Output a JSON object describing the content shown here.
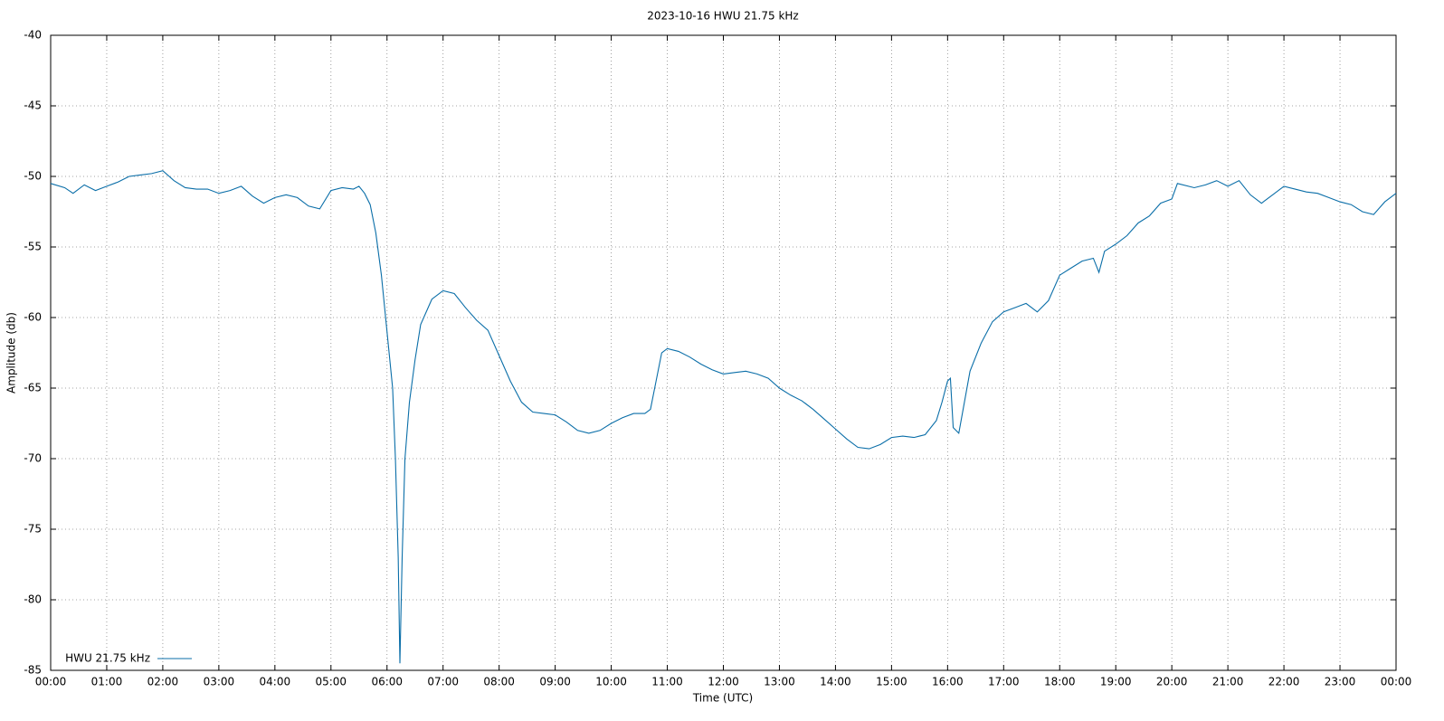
{
  "chart_data": {
    "type": "line",
    "title": "2023-10-16 HWU 21.75 kHz",
    "xlabel": "Time (UTC)",
    "ylabel": "Amplitude (db)",
    "grid": true,
    "legend": "bottom-left",
    "xlim": [
      0,
      24
    ],
    "ylim": [
      -85,
      -40
    ],
    "yticks": [
      -85,
      -80,
      -75,
      -70,
      -65,
      -60,
      -55,
      -50,
      -45,
      -40
    ],
    "xticks": [
      {
        "value": 0,
        "label": "00:00"
      },
      {
        "value": 1,
        "label": "01:00"
      },
      {
        "value": 2,
        "label": "02:00"
      },
      {
        "value": 3,
        "label": "03:00"
      },
      {
        "value": 4,
        "label": "04:00"
      },
      {
        "value": 5,
        "label": "05:00"
      },
      {
        "value": 6,
        "label": "06:00"
      },
      {
        "value": 7,
        "label": "07:00"
      },
      {
        "value": 8,
        "label": "08:00"
      },
      {
        "value": 9,
        "label": "09:00"
      },
      {
        "value": 10,
        "label": "10:00"
      },
      {
        "value": 11,
        "label": "11:00"
      },
      {
        "value": 12,
        "label": "12:00"
      },
      {
        "value": 13,
        "label": "13:00"
      },
      {
        "value": 14,
        "label": "14:00"
      },
      {
        "value": 15,
        "label": "15:00"
      },
      {
        "value": 16,
        "label": "16:00"
      },
      {
        "value": 17,
        "label": "17:00"
      },
      {
        "value": 18,
        "label": "18:00"
      },
      {
        "value": 19,
        "label": "19:00"
      },
      {
        "value": 20,
        "label": "20:00"
      },
      {
        "value": 21,
        "label": "21:00"
      },
      {
        "value": 22,
        "label": "22:00"
      },
      {
        "value": 23,
        "label": "23:00"
      },
      {
        "value": 24,
        "label": "00:00"
      }
    ],
    "x": [
      0,
      0.25,
      0.4,
      0.6,
      0.8,
      1.0,
      1.2,
      1.4,
      1.6,
      1.8,
      2.0,
      2.2,
      2.4,
      2.6,
      2.8,
      3.0,
      3.2,
      3.4,
      3.6,
      3.8,
      4.0,
      4.2,
      4.4,
      4.6,
      4.8,
      5.0,
      5.2,
      5.4,
      5.5,
      5.6,
      5.7,
      5.8,
      5.9,
      6.0,
      6.1,
      6.15,
      6.2,
      6.23,
      6.27,
      6.32,
      6.4,
      6.5,
      6.6,
      6.8,
      7.0,
      7.2,
      7.4,
      7.6,
      7.8,
      8.0,
      8.2,
      8.4,
      8.6,
      8.8,
      9.0,
      9.2,
      9.4,
      9.6,
      9.8,
      10.0,
      10.2,
      10.4,
      10.6,
      10.7,
      10.8,
      10.9,
      11.0,
      11.2,
      11.4,
      11.6,
      11.8,
      12.0,
      12.2,
      12.4,
      12.6,
      12.8,
      13.0,
      13.2,
      13.4,
      13.6,
      13.8,
      14.0,
      14.2,
      14.4,
      14.6,
      14.8,
      15.0,
      15.2,
      15.4,
      15.6,
      15.8,
      15.9,
      16.0,
      16.05,
      16.1,
      16.2,
      16.3,
      16.4,
      16.6,
      16.8,
      17.0,
      17.2,
      17.4,
      17.6,
      17.8,
      18.0,
      18.2,
      18.4,
      18.6,
      18.7,
      18.8,
      19.0,
      19.2,
      19.4,
      19.6,
      19.8,
      20.0,
      20.1,
      20.4,
      20.6,
      20.8,
      21.0,
      21.2,
      21.4,
      21.6,
      21.8,
      22.0,
      22.2,
      22.4,
      22.6,
      22.8,
      23.0,
      23.2,
      23.4,
      23.6,
      23.8,
      24.0
    ],
    "series": [
      {
        "name": "HWU 21.75 kHz",
        "color": "#0a6ea8",
        "values": [
          -50.5,
          -50.8,
          -51.2,
          -50.6,
          -51.0,
          -50.7,
          -50.4,
          -50.0,
          -49.9,
          -49.8,
          -49.6,
          -50.3,
          -50.8,
          -50.9,
          -50.9,
          -51.2,
          -51.0,
          -50.7,
          -51.4,
          -51.9,
          -51.5,
          -51.3,
          -51.5,
          -52.1,
          -52.3,
          -51.0,
          -50.8,
          -50.9,
          -50.7,
          -51.2,
          -52.0,
          -54.0,
          -57.0,
          -61.0,
          -65.0,
          -70.0,
          -77.0,
          -84.5,
          -77.0,
          -70.0,
          -66.0,
          -63.0,
          -60.5,
          -58.7,
          -58.1,
          -58.3,
          -59.3,
          -60.2,
          -60.9,
          -62.7,
          -64.5,
          -66.0,
          -66.7,
          -66.8,
          -66.9,
          -67.4,
          -68.0,
          -68.2,
          -68.0,
          -67.5,
          -67.1,
          -66.8,
          -66.8,
          -66.5,
          -64.5,
          -62.5,
          -62.2,
          -62.4,
          -62.8,
          -63.3,
          -63.7,
          -64.0,
          -63.9,
          -63.8,
          -64.0,
          -64.3,
          -65.0,
          -65.5,
          -65.9,
          -66.5,
          -67.2,
          -67.9,
          -68.6,
          -69.2,
          -69.3,
          -69.0,
          -68.5,
          -68.4,
          -68.5,
          -68.3,
          -67.3,
          -66.0,
          -64.5,
          -64.3,
          -67.8,
          -68.2,
          -66.0,
          -63.8,
          -61.8,
          -60.3,
          -59.6,
          -59.3,
          -59.0,
          -59.6,
          -58.8,
          -57.0,
          -56.5,
          -56.0,
          -55.8,
          -56.8,
          -55.3,
          -54.8,
          -54.2,
          -53.3,
          -52.8,
          -51.9,
          -51.6,
          -50.5,
          -50.8,
          -50.6,
          -50.3,
          -50.7,
          -50.3,
          -51.3,
          -51.9,
          -51.3,
          -50.7,
          -50.9,
          -51.1,
          -51.2,
          -51.5,
          -51.8,
          -52.0,
          -52.5,
          -52.7,
          -51.8,
          -51.2
        ]
      }
    ]
  }
}
